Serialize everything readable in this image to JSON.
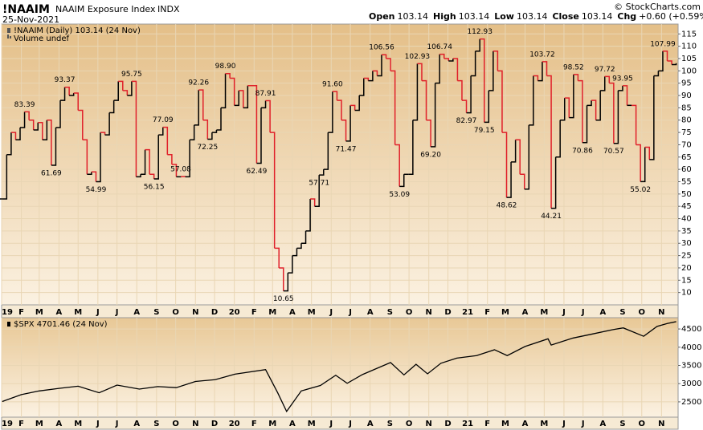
{
  "header": {
    "symbol": "!NAAIM",
    "name": "NAAIM Exposure Index",
    "exchange": "INDX",
    "date": "25-Nov-2021",
    "copyright": "© StockCharts.com",
    "fields": [
      {
        "label": "Open",
        "value": 103.14
      },
      {
        "label": "High",
        "value": 103.14
      },
      {
        "label": "Low",
        "value": 103.14
      },
      {
        "label": "Close",
        "value": 103.14
      },
      {
        "label": "Chg",
        "value": "+0.60 (+0.59%)"
      }
    ]
  },
  "chart_data": [
    {
      "type": "line",
      "step": true,
      "legend_note": "Volume undef",
      "xlim": [
        "2019-01-01",
        "2021-11-27"
      ],
      "xticks": [
        {
          "value": "2019-01-01",
          "label": "19"
        },
        {
          "value": "2019-02-01",
          "label": "F"
        },
        {
          "value": "2019-03-01",
          "label": "M"
        },
        {
          "value": "2019-04-01",
          "label": "A"
        },
        {
          "value": "2019-05-01",
          "label": "M"
        },
        {
          "value": "2019-06-01",
          "label": "J"
        },
        {
          "value": "2019-07-01",
          "label": "J"
        },
        {
          "value": "2019-08-01",
          "label": "A"
        },
        {
          "value": "2019-09-01",
          "label": "S"
        },
        {
          "value": "2019-10-01",
          "label": "O"
        },
        {
          "value": "2019-11-01",
          "label": "N"
        },
        {
          "value": "2019-12-01",
          "label": "D"
        },
        {
          "value": "2020-01-01",
          "label": "20"
        },
        {
          "value": "2020-02-01",
          "label": "F"
        },
        {
          "value": "2020-03-01",
          "label": "M"
        },
        {
          "value": "2020-04-01",
          "label": "A"
        },
        {
          "value": "2020-05-01",
          "label": "M"
        },
        {
          "value": "2020-06-01",
          "label": "J"
        },
        {
          "value": "2020-07-01",
          "label": "J"
        },
        {
          "value": "2020-08-01",
          "label": "A"
        },
        {
          "value": "2020-09-01",
          "label": "S"
        },
        {
          "value": "2020-10-01",
          "label": "O"
        },
        {
          "value": "2020-11-01",
          "label": "N"
        },
        {
          "value": "2020-12-01",
          "label": "D"
        },
        {
          "value": "2021-01-01",
          "label": "21"
        },
        {
          "value": "2021-02-01",
          "label": "F"
        },
        {
          "value": "2021-03-01",
          "label": "M"
        },
        {
          "value": "2021-04-01",
          "label": "A"
        },
        {
          "value": "2021-05-01",
          "label": "M"
        },
        {
          "value": "2021-06-01",
          "label": "J"
        },
        {
          "value": "2021-07-01",
          "label": "J"
        },
        {
          "value": "2021-08-01",
          "label": "A"
        },
        {
          "value": "2021-09-01",
          "label": "S"
        },
        {
          "value": "2021-10-01",
          "label": "O"
        },
        {
          "value": "2021-11-01",
          "label": "N"
        }
      ],
      "ylim": [
        5,
        119
      ],
      "yticks": [
        10,
        15,
        20,
        25,
        30,
        35,
        40,
        45,
        50,
        55,
        60,
        65,
        70,
        75,
        80,
        85,
        90,
        95,
        100,
        105,
        110,
        115
      ],
      "grid": true,
      "x": [
        "2019-01-02",
        "2019-01-09",
        "2019-01-16",
        "2019-01-23",
        "2019-01-30",
        "2019-02-06",
        "2019-02-13",
        "2019-02-20",
        "2019-02-27",
        "2019-03-06",
        "2019-03-13",
        "2019-03-20",
        "2019-03-27",
        "2019-04-03",
        "2019-04-10",
        "2019-04-17",
        "2019-04-24",
        "2019-05-01",
        "2019-05-08",
        "2019-05-15",
        "2019-05-22",
        "2019-05-29",
        "2019-06-05",
        "2019-06-12",
        "2019-06-19",
        "2019-06-26",
        "2019-07-03",
        "2019-07-10",
        "2019-07-17",
        "2019-07-24",
        "2019-07-31",
        "2019-08-07",
        "2019-08-14",
        "2019-08-21",
        "2019-08-28",
        "2019-09-04",
        "2019-09-11",
        "2019-09-18",
        "2019-09-25",
        "2019-10-02",
        "2019-10-09",
        "2019-10-16",
        "2019-10-23",
        "2019-10-30",
        "2019-11-06",
        "2019-11-13",
        "2019-11-20",
        "2019-11-27",
        "2019-12-04",
        "2019-12-11",
        "2019-12-18",
        "2019-12-25",
        "2020-01-01",
        "2020-01-08",
        "2020-01-15",
        "2020-01-22",
        "2020-02-05",
        "2020-02-12",
        "2020-02-19",
        "2020-02-26",
        "2020-03-04",
        "2020-03-11",
        "2020-03-18",
        "2020-03-25",
        "2020-04-01",
        "2020-04-08",
        "2020-04-15",
        "2020-04-22",
        "2020-04-29",
        "2020-05-06",
        "2020-05-13",
        "2020-05-20",
        "2020-05-27",
        "2020-06-03",
        "2020-06-10",
        "2020-06-17",
        "2020-06-24",
        "2020-07-01",
        "2020-07-08",
        "2020-07-15",
        "2020-07-22",
        "2020-07-29",
        "2020-08-05",
        "2020-08-12",
        "2020-08-19",
        "2020-08-26",
        "2020-09-02",
        "2020-09-09",
        "2020-09-16",
        "2020-09-23",
        "2020-09-30",
        "2020-10-07",
        "2020-10-14",
        "2020-10-21",
        "2020-10-28",
        "2020-11-04",
        "2020-11-11",
        "2020-11-18",
        "2020-11-25",
        "2020-12-02",
        "2020-12-09",
        "2020-12-16",
        "2020-12-23",
        "2020-12-30",
        "2021-01-06",
        "2021-01-13",
        "2021-01-20",
        "2021-01-27",
        "2021-02-03",
        "2021-02-10",
        "2021-02-17",
        "2021-02-24",
        "2021-03-03",
        "2021-03-10",
        "2021-03-17",
        "2021-03-24",
        "2021-03-31",
        "2021-04-07",
        "2021-04-14",
        "2021-04-21",
        "2021-04-28",
        "2021-05-05",
        "2021-05-12",
        "2021-05-19",
        "2021-05-26",
        "2021-06-02",
        "2021-06-09",
        "2021-06-16",
        "2021-06-23",
        "2021-06-30",
        "2021-07-07",
        "2021-07-14",
        "2021-07-21",
        "2021-07-28",
        "2021-08-04",
        "2021-08-11",
        "2021-08-18",
        "2021-08-25",
        "2021-09-01",
        "2021-09-08",
        "2021-09-15",
        "2021-09-22",
        "2021-09-29",
        "2021-10-06",
        "2021-10-13",
        "2021-10-20",
        "2021-10-27",
        "2021-11-03",
        "2021-11-10",
        "2021-11-17",
        "2021-11-24"
      ],
      "series": [
        {
          "name": "!NAAIM (Daily) 103.14 (24 Nov)",
          "color": "#000000",
          "down_color": "#e0202a",
          "values": [
            48,
            66,
            75,
            72,
            77,
            83.39,
            80,
            76,
            79,
            72,
            80,
            61.69,
            77,
            88,
            93.37,
            90,
            91,
            84,
            72,
            58,
            59,
            54.99,
            75,
            74,
            83,
            88,
            95.75,
            92,
            90,
            95.75,
            57,
            58,
            68,
            58,
            56.15,
            74,
            77.09,
            66,
            62,
            57,
            57.08,
            57,
            72,
            78,
            92.26,
            80,
            72.25,
            75,
            76,
            85,
            98.9,
            97,
            86,
            92,
            85,
            94,
            62.49,
            85,
            87.91,
            75,
            28,
            20,
            10.65,
            18,
            25,
            28,
            30,
            35,
            48,
            45,
            57.71,
            60,
            75,
            91.6,
            88,
            80,
            71.47,
            86,
            84,
            90,
            97,
            96,
            100,
            98,
            106.56,
            105,
            100,
            70,
            53.09,
            58,
            58,
            80,
            102.93,
            96,
            80,
            69.2,
            95,
            106.74,
            105,
            104,
            105,
            96,
            88,
            82.97,
            98,
            108,
            112.93,
            79.15,
            92,
            108,
            100,
            75,
            48.62,
            63,
            72,
            58,
            52,
            78,
            98,
            96,
            103.72,
            98,
            44.21,
            65,
            80,
            89,
            81,
            98.52,
            96,
            70.86,
            86,
            88,
            80,
            92,
            97.72,
            95,
            70.57,
            92,
            93.95,
            86,
            86,
            70,
            55.02,
            69,
            64,
            98,
            100,
            107.99,
            104,
            102.54,
            103.14
          ],
          "value_labels": [
            null,
            null,
            null,
            null,
            null,
            "83.39",
            null,
            null,
            null,
            null,
            null,
            "61.69",
            null,
            null,
            "93.37",
            null,
            null,
            null,
            null,
            null,
            null,
            "54.99",
            null,
            null,
            null,
            null,
            null,
            null,
            null,
            "95.75",
            null,
            null,
            null,
            null,
            "56.15",
            null,
            "77.09",
            null,
            null,
            null,
            "57.08",
            null,
            null,
            null,
            "92.26",
            null,
            "72.25",
            null,
            null,
            null,
            "98.90",
            null,
            null,
            null,
            null,
            null,
            "62.49",
            null,
            "87.91",
            null,
            null,
            null,
            "10.65",
            null,
            null,
            null,
            null,
            null,
            null,
            null,
            "57.71",
            null,
            null,
            "91.60",
            null,
            null,
            "71.47",
            null,
            null,
            null,
            null,
            null,
            null,
            null,
            "106.56",
            null,
            null,
            null,
            "53.09",
            null,
            null,
            null,
            "102.93",
            null,
            null,
            "69.20",
            null,
            "106.74",
            null,
            null,
            null,
            null,
            null,
            "82.97",
            null,
            null,
            "112.93",
            "79.15",
            null,
            null,
            null,
            null,
            "48.62",
            null,
            null,
            null,
            null,
            null,
            null,
            null,
            "103.72",
            null,
            "44.21",
            null,
            null,
            null,
            null,
            "98.52",
            null,
            "70.86",
            null,
            null,
            null,
            null,
            "97.72",
            null,
            "70.57",
            null,
            "93.95",
            null,
            null,
            null,
            "55.02",
            null,
            null,
            null,
            null,
            "107.99",
            null,
            null,
            null
          ]
        }
      ]
    },
    {
      "type": "line",
      "xlim": [
        "2019-01-01",
        "2021-11-27"
      ],
      "ylim": [
        2080,
        4810
      ],
      "yticks": [
        2500,
        3000,
        3500,
        4000,
        4500
      ],
      "grid": true,
      "x": [
        "2019-01-02",
        "2019-02-01",
        "2019-03-01",
        "2019-04-01",
        "2019-05-01",
        "2019-06-03",
        "2019-07-01",
        "2019-08-05",
        "2019-09-03",
        "2019-10-02",
        "2019-11-01",
        "2019-12-02",
        "2020-01-02",
        "2020-02-19",
        "2020-03-09",
        "2020-03-23",
        "2020-04-15",
        "2020-05-15",
        "2020-06-08",
        "2020-06-26",
        "2020-07-20",
        "2020-09-02",
        "2020-09-23",
        "2020-10-12",
        "2020-10-30",
        "2020-11-20",
        "2020-12-15",
        "2021-01-15",
        "2021-02-12",
        "2021-03-04",
        "2021-04-01",
        "2021-05-07",
        "2021-05-12",
        "2021-06-15",
        "2021-07-15",
        "2021-08-16",
        "2021-09-02",
        "2021-10-04",
        "2021-10-25",
        "2021-11-10",
        "2021-11-24"
      ],
      "series": [
        {
          "name": "$SPX 4701.46 (24 Nov)",
          "color": "#000000",
          "values": [
            2510,
            2700,
            2800,
            2870,
            2930,
            2750,
            2960,
            2850,
            2920,
            2890,
            3060,
            3110,
            3260,
            3386,
            2750,
            2237,
            2800,
            2950,
            3230,
            3010,
            3250,
            3580,
            3240,
            3530,
            3270,
            3560,
            3700,
            3770,
            3930,
            3770,
            4020,
            4230,
            4060,
            4250,
            4360,
            4480,
            4530,
            4300,
            4570,
            4650,
            4701.46
          ]
        }
      ]
    }
  ]
}
